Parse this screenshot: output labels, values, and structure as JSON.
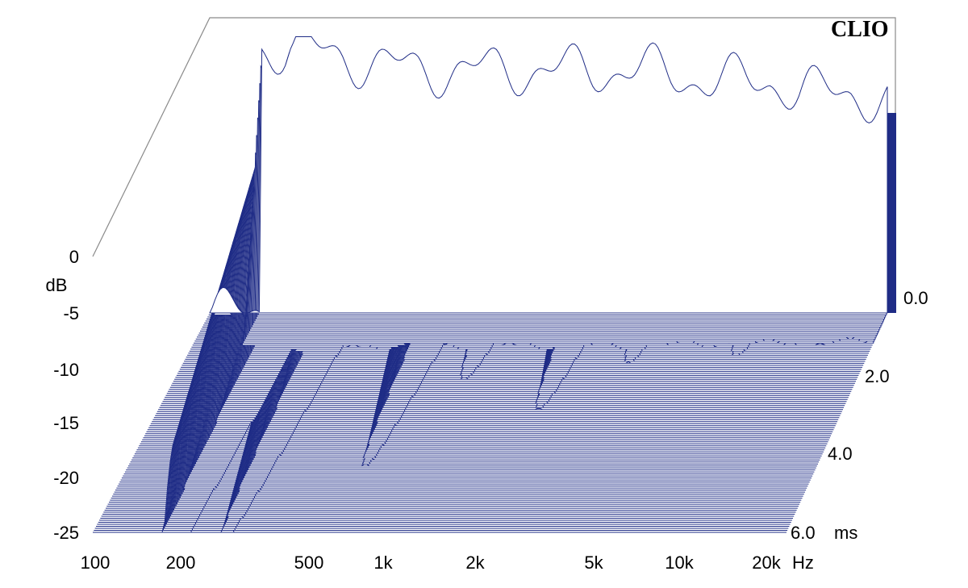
{
  "brand_label": "CLIO",
  "chart_data": {
    "type": "waterfall",
    "title": "",
    "x": {
      "scale": "log",
      "unit": "Hz",
      "range": [
        100,
        20000
      ],
      "ticks": [
        {
          "value": 100,
          "label": "100"
        },
        {
          "value": 200,
          "label": "200"
        },
        {
          "value": 500,
          "label": "500"
        },
        {
          "value": 1000,
          "label": "1k"
        },
        {
          "value": 2000,
          "label": "2k"
        },
        {
          "value": 5000,
          "label": "5k"
        },
        {
          "value": 10000,
          "label": "10k"
        },
        {
          "value": 20000,
          "label": "20k"
        }
      ]
    },
    "y": {
      "unit": "dB",
      "range": [
        -25,
        0
      ],
      "ticks": [
        {
          "value": 0,
          "label": "0"
        },
        {
          "value": -5,
          "label": "-5"
        },
        {
          "value": -10,
          "label": "-10"
        },
        {
          "value": -15,
          "label": "-15"
        },
        {
          "value": -20,
          "label": "-20"
        },
        {
          "value": -25,
          "label": "-25"
        }
      ]
    },
    "z": {
      "unit": "ms",
      "range": [
        0,
        6
      ],
      "ticks": [
        {
          "value": 0,
          "label": "0.0"
        },
        {
          "value": 2,
          "label": "2.0"
        },
        {
          "value": 4,
          "label": "4.0"
        },
        {
          "value": 6,
          "label": "6.0"
        }
      ]
    },
    "slice_count": 110,
    "line_color": "#1f2c86",
    "initial_response_db": [
      {
        "hz": 150,
        "db": -1
      },
      {
        "hz": 200,
        "db": -1
      },
      {
        "hz": 300,
        "db": -2
      },
      {
        "hz": 500,
        "db": -3
      },
      {
        "hz": 700,
        "db": -3
      },
      {
        "hz": 1000,
        "db": -3
      },
      {
        "hz": 1500,
        "db": -3
      },
      {
        "hz": 2000,
        "db": -3
      },
      {
        "hz": 3000,
        "db": -3
      },
      {
        "hz": 5000,
        "db": -4
      },
      {
        "hz": 8000,
        "db": -4
      },
      {
        "hz": 10000,
        "db": -5
      },
      {
        "hz": 15000,
        "db": -5
      },
      {
        "hz": 20000,
        "db": -6
      }
    ],
    "resonance_ridges": [
      {
        "hz": 190,
        "peak_db": -1,
        "decay_ms": 5.5
      },
      {
        "hz": 280,
        "peak_db": -5,
        "decay_ms": 4.5
      },
      {
        "hz": 620,
        "peak_db": -8,
        "decay_ms": 3.5
      },
      {
        "hz": 950,
        "peak_db": -12,
        "decay_ms": 2.0
      },
      {
        "hz": 1900,
        "peak_db": -10,
        "decay_ms": 2.5
      },
      {
        "hz": 3200,
        "peak_db": -12,
        "decay_ms": 1.5
      },
      {
        "hz": 7200,
        "peak_db": -11,
        "decay_ms": 1.2
      },
      {
        "hz": 13000,
        "peak_db": -14,
        "decay_ms": 0.8
      }
    ]
  }
}
